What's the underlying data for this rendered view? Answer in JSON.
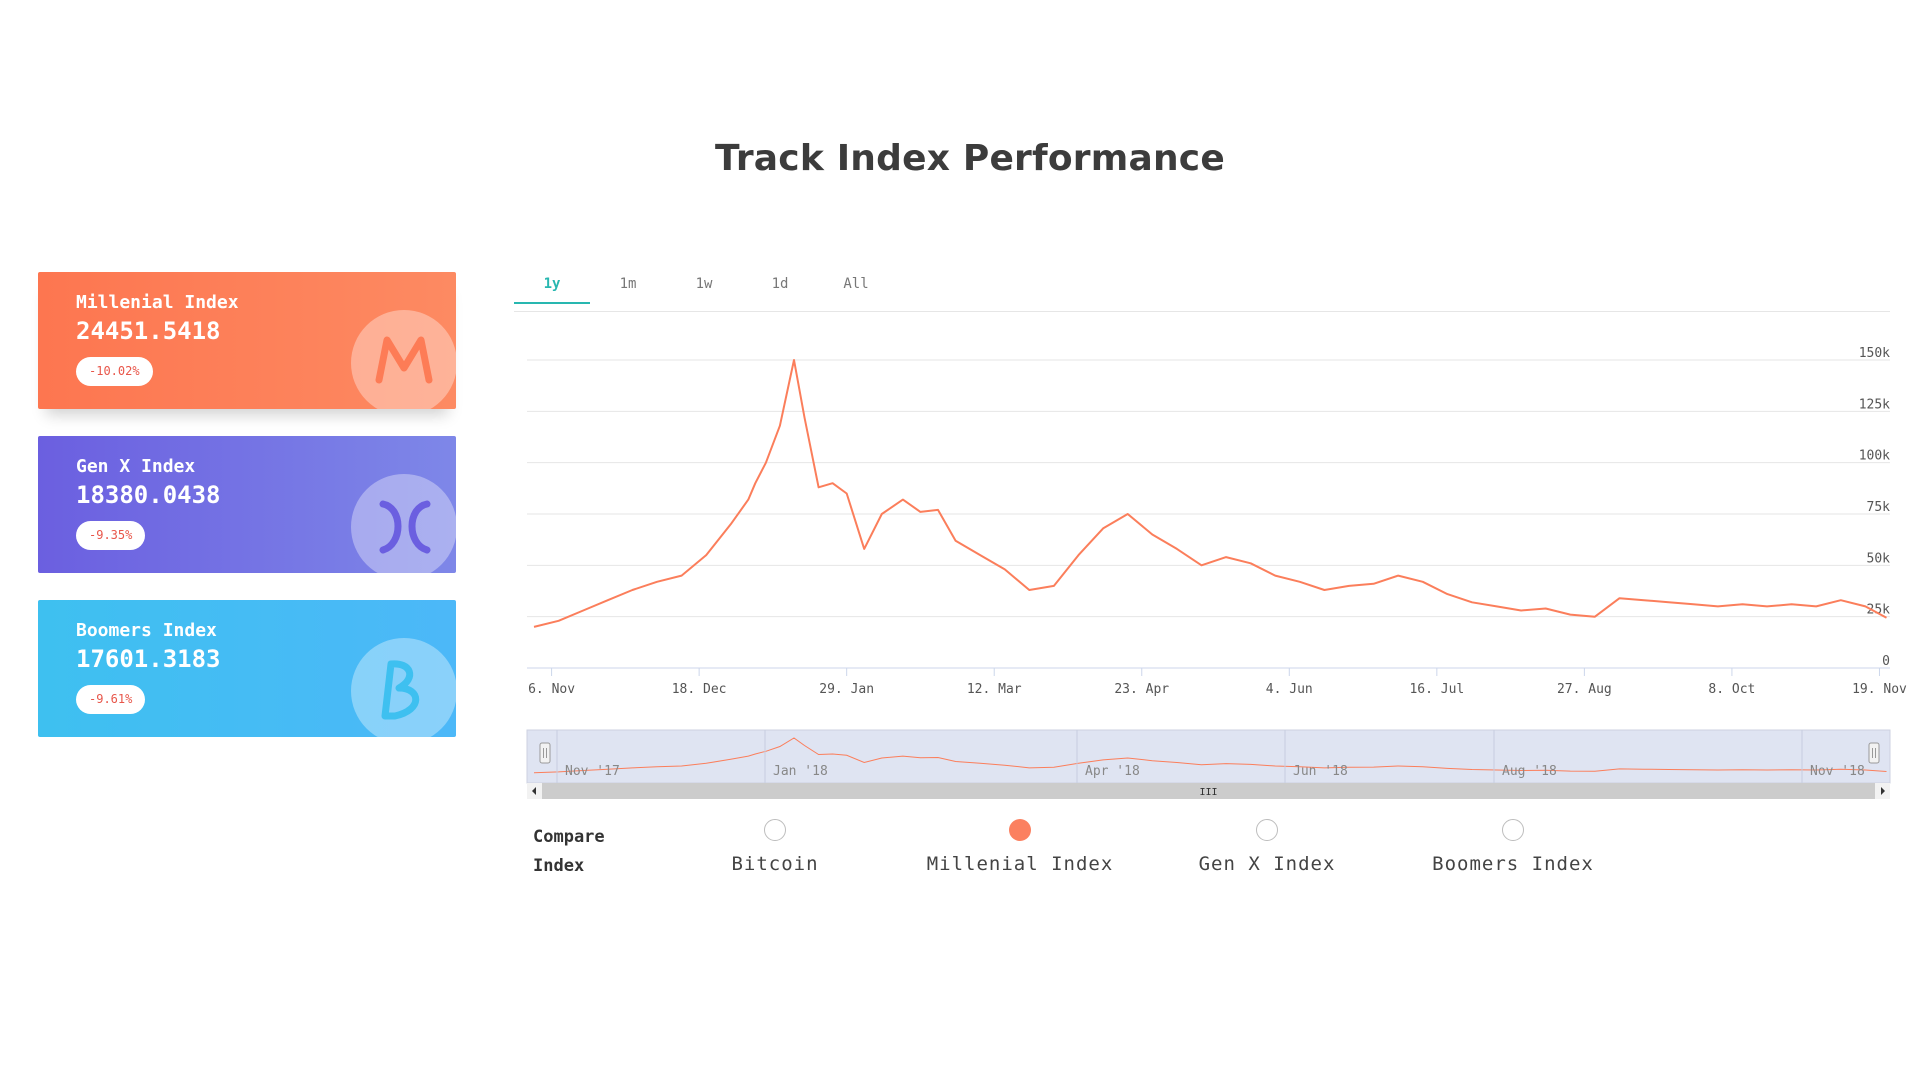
{
  "page": {
    "title": "Track Index Performance"
  },
  "cards": [
    {
      "name": "Millenial Index",
      "value": "24451.5418",
      "change": "-10.02%",
      "logo_letter": "M",
      "color": "#fd7650"
    },
    {
      "name": "Gen X Index",
      "value": "18380.0438",
      "change": "-9.35%",
      "logo_letter": "X",
      "color": "#6b5fe0"
    },
    {
      "name": "Boomers Index",
      "value": "17601.3183",
      "change": "-9.61%",
      "logo_letter": "B",
      "color": "#3ec0f0"
    }
  ],
  "tabs": {
    "items": [
      "1y",
      "1m",
      "1w",
      "1d",
      "All"
    ],
    "active": "1y",
    "accent": "#28b7b0"
  },
  "compare": {
    "label": "Compare Index",
    "options": [
      "Bitcoin",
      "Millenial Index",
      "Gen X Index",
      "Boomers Index"
    ],
    "selected": "Millenial Index",
    "accent": "#fb8060"
  },
  "navigator": {
    "labels": [
      "Nov '17",
      "Jan '18",
      "Apr '18",
      "Jun '18",
      "Aug '18",
      "Nov '18"
    ],
    "scrollbar_glyph": "III"
  },
  "chart_data": {
    "type": "line",
    "title": "",
    "xlabel": "",
    "ylabel": "",
    "series_color": "#fb7e5b",
    "x_tick_labels": [
      "6. Nov",
      "18. Dec",
      "29. Jan",
      "12. Mar",
      "23. Apr",
      "4. Jun",
      "16. Jul",
      "27. Aug",
      "8. Oct",
      "19. Nov"
    ],
    "y_tick_labels": [
      "0",
      "25k",
      "50k",
      "75k",
      "100k",
      "125k",
      "150k"
    ],
    "ylim": [
      0,
      150000
    ],
    "grid": true,
    "legend": "none",
    "series": [
      {
        "x": [
          "2017-11-01",
          "2017-11-08",
          "2017-11-15",
          "2017-11-22",
          "2017-11-29",
          "2017-12-06",
          "2017-12-13",
          "2017-12-20",
          "2017-12-27",
          "2018-01-01",
          "2018-01-03",
          "2018-01-06",
          "2018-01-10",
          "2018-01-14",
          "2018-01-17",
          "2018-01-21",
          "2018-01-25",
          "2018-01-29",
          "2018-02-03",
          "2018-02-08",
          "2018-02-14",
          "2018-02-19",
          "2018-02-24",
          "2018-03-01",
          "2018-03-08",
          "2018-03-15",
          "2018-03-22",
          "2018-03-29",
          "2018-04-05",
          "2018-04-12",
          "2018-04-19",
          "2018-04-26",
          "2018-05-03",
          "2018-05-10",
          "2018-05-17",
          "2018-05-24",
          "2018-05-31",
          "2018-06-07",
          "2018-06-14",
          "2018-06-21",
          "2018-06-28",
          "2018-07-05",
          "2018-07-12",
          "2018-07-19",
          "2018-07-26",
          "2018-08-02",
          "2018-08-09",
          "2018-08-16",
          "2018-08-23",
          "2018-08-30",
          "2018-09-06",
          "2018-09-13",
          "2018-09-20",
          "2018-09-27",
          "2018-10-04",
          "2018-10-11",
          "2018-10-18",
          "2018-10-25",
          "2018-11-01",
          "2018-11-08",
          "2018-11-15",
          "2018-11-21"
        ],
        "y": [
          20000,
          23000,
          28000,
          33000,
          38000,
          42000,
          45000,
          55000,
          70000,
          82000,
          90000,
          100000,
          118000,
          150000,
          122000,
          88000,
          90000,
          85000,
          58000,
          75000,
          82000,
          76000,
          77000,
          62000,
          55000,
          48000,
          38000,
          40000,
          55000,
          68000,
          75000,
          65000,
          58000,
          50000,
          54000,
          51000,
          45000,
          42000,
          38000,
          40000,
          41000,
          45000,
          42000,
          36000,
          32000,
          30000,
          28000,
          29000,
          26000,
          25000,
          34000,
          33000,
          32000,
          31000,
          30000,
          31000,
          30000,
          31000,
          30000,
          33000,
          30000,
          24500
        ]
      }
    ]
  }
}
